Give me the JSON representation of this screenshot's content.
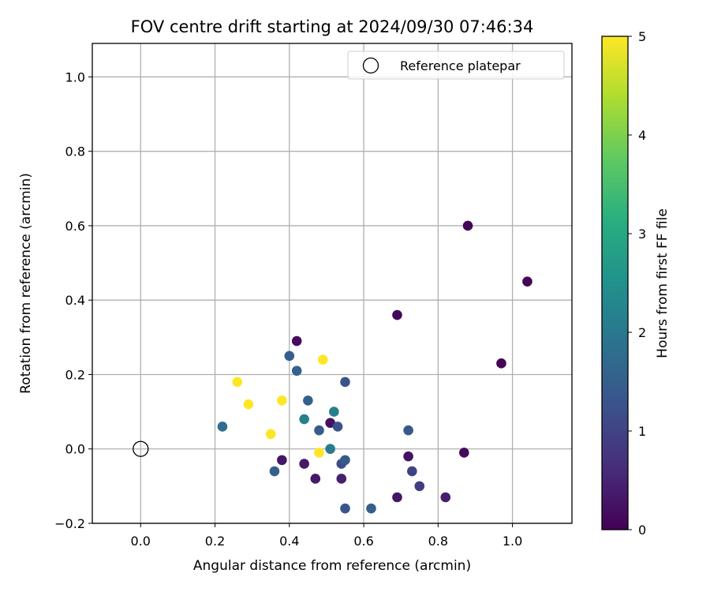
{
  "chart_data": {
    "type": "scatter",
    "title": "FOV centre drift starting at 2024/09/30 07:46:34",
    "xlabel": "Angular distance from reference (arcmin)",
    "ylabel": "Rotation from reference (arcmin)",
    "xlim": [
      -0.13,
      1.16
    ],
    "ylim": [
      -0.2,
      1.09
    ],
    "xticks": [
      "0.0",
      "0.2",
      "0.4",
      "0.6",
      "0.8",
      "1.0"
    ],
    "yticks": [
      "−0.2",
      "0.0",
      "0.2",
      "0.4",
      "0.6",
      "0.8",
      "1.0"
    ],
    "grid": true,
    "legend": {
      "position": "top-right",
      "entries": [
        "Reference platepar"
      ]
    },
    "reference_point": {
      "x": 0.0,
      "y": 0.0
    },
    "colorbar": {
      "label": "Hours from first FF file",
      "range": [
        0,
        5
      ],
      "ticks": [
        "0",
        "1",
        "2",
        "3",
        "4",
        "5"
      ],
      "colormap": "viridis"
    },
    "points": [
      {
        "x": 0.88,
        "y": 0.6,
        "h": 0.05
      },
      {
        "x": 1.04,
        "y": 0.45,
        "h": 0.05
      },
      {
        "x": 0.69,
        "y": 0.36,
        "h": 0.1
      },
      {
        "x": 0.97,
        "y": 0.23,
        "h": 0.05
      },
      {
        "x": 0.42,
        "y": 0.29,
        "h": 0.15
      },
      {
        "x": 0.51,
        "y": 0.07,
        "h": 0.25
      },
      {
        "x": 0.87,
        "y": -0.01,
        "h": 0.1
      },
      {
        "x": 0.72,
        "y": -0.02,
        "h": 0.25
      },
      {
        "x": 0.38,
        "y": -0.03,
        "h": 0.3
      },
      {
        "x": 0.44,
        "y": -0.04,
        "h": 0.35
      },
      {
        "x": 0.47,
        "y": -0.08,
        "h": 0.35
      },
      {
        "x": 0.54,
        "y": -0.08,
        "h": 0.45
      },
      {
        "x": 0.69,
        "y": -0.13,
        "h": 0.3
      },
      {
        "x": 0.82,
        "y": -0.13,
        "h": 0.45
      },
      {
        "x": 0.4,
        "y": 0.25,
        "h": 1.5
      },
      {
        "x": 0.42,
        "y": 0.21,
        "h": 1.6
      },
      {
        "x": 0.55,
        "y": 0.18,
        "h": 1.3
      },
      {
        "x": 0.45,
        "y": 0.13,
        "h": 1.55
      },
      {
        "x": 0.22,
        "y": 0.06,
        "h": 1.8
      },
      {
        "x": 0.48,
        "y": 0.05,
        "h": 1.45
      },
      {
        "x": 0.53,
        "y": 0.06,
        "h": 1.25
      },
      {
        "x": 0.72,
        "y": 0.05,
        "h": 1.4
      },
      {
        "x": 0.36,
        "y": -0.06,
        "h": 1.55
      },
      {
        "x": 0.54,
        "y": -0.04,
        "h": 1.2
      },
      {
        "x": 0.55,
        "y": -0.03,
        "h": 1.4
      },
      {
        "x": 0.73,
        "y": -0.06,
        "h": 1.0
      },
      {
        "x": 0.75,
        "y": -0.1,
        "h": 0.9
      },
      {
        "x": 0.55,
        "y": -0.16,
        "h": 1.35
      },
      {
        "x": 0.62,
        "y": -0.16,
        "h": 1.5
      },
      {
        "x": 0.44,
        "y": 0.08,
        "h": 2.2
      },
      {
        "x": 0.52,
        "y": 0.1,
        "h": 2.15
      },
      {
        "x": 0.51,
        "y": 0.0,
        "h": 2.1
      },
      {
        "x": 0.26,
        "y": 0.18,
        "h": 5.0
      },
      {
        "x": 0.29,
        "y": 0.12,
        "h": 5.0
      },
      {
        "x": 0.38,
        "y": 0.13,
        "h": 5.0
      },
      {
        "x": 0.35,
        "y": 0.04,
        "h": 5.0
      },
      {
        "x": 0.49,
        "y": 0.24,
        "h": 5.0
      },
      {
        "x": 0.48,
        "y": -0.01,
        "h": 5.0
      }
    ]
  }
}
